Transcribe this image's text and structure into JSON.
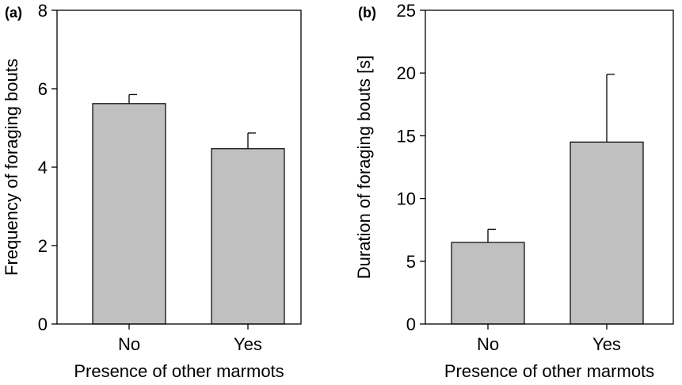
{
  "colors": {
    "bar_fill": "#c0c0c0",
    "ink": "#000000"
  },
  "chart_data": [
    {
      "type": "bar",
      "panel_label": "(a)",
      "categories": [
        "No",
        "Yes"
      ],
      "values": [
        5.62,
        4.47
      ],
      "error_upper": [
        5.85,
        4.87
      ],
      "xlabel": "Presence of other marmots",
      "ylabel": "Frequency of foraging bouts",
      "ylim": [
        0,
        8
      ],
      "yticks": [
        0,
        2,
        4,
        6,
        8
      ],
      "grid": false
    },
    {
      "type": "bar",
      "panel_label": "(b)",
      "categories": [
        "No",
        "Yes"
      ],
      "values": [
        6.5,
        14.5
      ],
      "error_upper": [
        7.55,
        19.9
      ],
      "xlabel": "Presence of other marmots",
      "ylabel": "Duration of foraging bouts [s]",
      "ylim": [
        0,
        25
      ],
      "yticks": [
        0,
        5,
        10,
        15,
        20,
        25
      ],
      "grid": false
    }
  ]
}
